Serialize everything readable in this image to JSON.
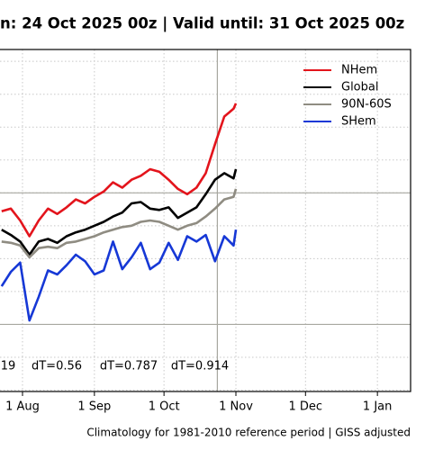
{
  "chart_data": {
    "type": "line",
    "title": "n: 24 Oct 2025 00z | Valid until: 31 Oct 2025 00z",
    "footnote": "Climatology for 1981-2010 reference period | GISS adjusted",
    "x": [
      204,
      208,
      212,
      216,
      220,
      224,
      228,
      232,
      236,
      240,
      244,
      248,
      252,
      256,
      260,
      264,
      268,
      272,
      276,
      280,
      284,
      288,
      292,
      296,
      300,
      304,
      305
    ],
    "series": [
      {
        "name": "NHem",
        "color": "#e3141c",
        "values": [
          0.86,
          0.88,
          0.79,
          0.67,
          0.79,
          0.88,
          0.84,
          0.89,
          0.95,
          0.92,
          0.97,
          1.01,
          1.08,
          1.04,
          1.1,
          1.13,
          1.18,
          1.16,
          1.1,
          1.03,
          0.99,
          1.04,
          1.15,
          1.37,
          1.58,
          1.64,
          1.68
        ]
      },
      {
        "name": "Global",
        "color": "#000000",
        "values": [
          0.72,
          0.68,
          0.63,
          0.53,
          0.63,
          0.65,
          0.62,
          0.67,
          0.7,
          0.72,
          0.75,
          0.78,
          0.82,
          0.85,
          0.92,
          0.93,
          0.88,
          0.87,
          0.89,
          0.81,
          0.85,
          0.89,
          0.99,
          1.1,
          1.15,
          1.11,
          1.18
        ]
      },
      {
        "name": "90N-60S",
        "color": "#8f8c82",
        "values": [
          0.63,
          0.62,
          0.6,
          0.51,
          0.58,
          0.59,
          0.58,
          0.62,
          0.63,
          0.65,
          0.67,
          0.7,
          0.72,
          0.74,
          0.75,
          0.78,
          0.79,
          0.78,
          0.75,
          0.72,
          0.75,
          0.77,
          0.82,
          0.88,
          0.95,
          0.97,
          1.03
        ]
      },
      {
        "name": "SHem",
        "color": "#1638d6",
        "values": [
          0.29,
          0.4,
          0.47,
          0.03,
          0.21,
          0.41,
          0.38,
          0.45,
          0.53,
          0.48,
          0.38,
          0.41,
          0.63,
          0.42,
          0.51,
          0.62,
          0.42,
          0.47,
          0.62,
          0.49,
          0.67,
          0.63,
          0.68,
          0.48,
          0.67,
          0.6,
          0.72
        ]
      }
    ],
    "xlim": [
      203.3,
      380.3
    ],
    "xticks": [
      {
        "value": 213,
        "label": "1 Aug"
      },
      {
        "value": 244,
        "label": "1 Sep"
      },
      {
        "value": 274,
        "label": "1 Oct"
      },
      {
        "value": 305,
        "label": "1 Nov"
      },
      {
        "value": 335,
        "label": "1 Dec"
      },
      {
        "value": 366,
        "label": "1 Jan"
      }
    ],
    "ylim": [
      -0.51,
      2.09
    ],
    "yticks": [
      -0.5,
      -0.25,
      0,
      0.25,
      0.5,
      0.75,
      1,
      1.25,
      1.5,
      1.75,
      2
    ],
    "ref_lines": [
      0,
      1
    ],
    "current_day": 297,
    "annotations": [
      "19",
      "dT=0.56",
      "dT=0.787",
      "dT=0.914"
    ],
    "grid": true,
    "legend": "top-right"
  }
}
